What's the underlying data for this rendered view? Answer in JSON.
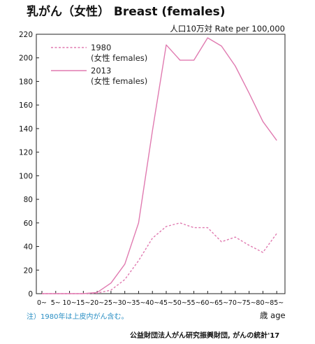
{
  "chart_data": {
    "type": "line",
    "title": "乳がん（女性） Breast (females)",
    "unit_label": "人口10万対 Rate per 100,000",
    "xlabel": "歳 age",
    "ylabel": "",
    "ylim": [
      0,
      220
    ],
    "yticks": [
      "0",
      "20",
      "40",
      "60",
      "80",
      "100",
      "120",
      "140",
      "160",
      "180",
      "200",
      "220"
    ],
    "grid": false,
    "legend_position": "top-left",
    "categories": [
      "0~",
      "5~",
      "10~",
      "15~",
      "20~",
      "25~",
      "30~",
      "35~",
      "40~",
      "45~",
      "50~",
      "55~",
      "60~",
      "65~",
      "70~",
      "75~",
      "80~",
      "85~"
    ],
    "series": [
      {
        "name_lines": [
          "1980",
          "(女性 females)"
        ],
        "style": "dashed",
        "color": "#e07ab0",
        "values": [
          0,
          0,
          0,
          0,
          0.5,
          3,
          12,
          28,
          47,
          57,
          60,
          56,
          56,
          44,
          48,
          41,
          35,
          51
        ]
      },
      {
        "name_lines": [
          "2013",
          "(女性 females)"
        ],
        "style": "solid",
        "color": "#e07ab0",
        "values": [
          0,
          0,
          0,
          0,
          1,
          9,
          25,
          60,
          138,
          211,
          198,
          198,
          217,
          210,
          193,
          170,
          146,
          130
        ]
      }
    ],
    "note": "注）1980年は上皮内がん含む。",
    "source": "公益財団法人がん研究振興財団, がんの統計'17"
  }
}
